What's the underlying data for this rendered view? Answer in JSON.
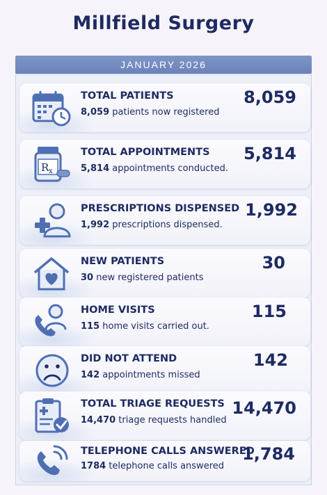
{
  "header": {
    "title": "Millfield Surgery",
    "period": "JANUARY 2026"
  },
  "colors": {
    "navy": "#1e2b62",
    "banner": "#7e95c7",
    "icon_blue": "#4f6fb3"
  },
  "stats": [
    {
      "icon": "calendar-clock-icon",
      "label": "TOTAL PATIENTS",
      "value": "8,059",
      "desc_number": "8,059",
      "desc_text": " patients now registered"
    },
    {
      "icon": "prescription-bottle-icon",
      "label": "TOTAL APPOINTMENTS",
      "value": "5,814",
      "desc_number": "5,814",
      "desc_text": " appointments conducted."
    },
    {
      "icon": "person-plus-icon",
      "label": "PRESCRIPTIONS DISPENSED",
      "value": "1,992",
      "desc_number": "1,992",
      "desc_text": " prescriptions dispensed."
    },
    {
      "icon": "house-heart-icon",
      "label": "NEW PATIENTS",
      "value": "30",
      "desc_number": "30",
      "desc_text": " new registered patients"
    },
    {
      "icon": "phone-person-icon",
      "label": "HOME VISITS",
      "value": "115",
      "desc_number": "115",
      "desc_text": " home visits carried out."
    },
    {
      "icon": "sad-face-icon",
      "label": "DID NOT ATTEND",
      "value": "142",
      "desc_number": "142",
      "desc_text": " appointments missed"
    },
    {
      "icon": "clipboard-check-icon",
      "label": "TOTAL TRIAGE REQUESTS",
      "value": "14,470",
      "desc_number": "14,470",
      "desc_text": " triage requests handled"
    },
    {
      "icon": "phone-signal-icon",
      "label": "TELEPHONE CALLS ANSWERED",
      "value": "1,784",
      "desc_number": "1784",
      "desc_text": " telephone calls answered"
    }
  ]
}
